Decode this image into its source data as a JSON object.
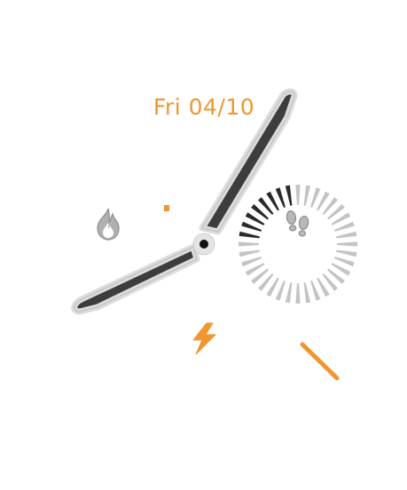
{
  "watch_face": {
    "date": "Fri 04/10",
    "time": {
      "hour": 7,
      "minute": 7
    },
    "steps_progress": {
      "total_segments": 36,
      "dark_segments": 8
    },
    "complications": {
      "calories_icon": "flame-icon",
      "steps_icon": "footprints-icon",
      "battery_icon": "lightning-bolt-icon"
    },
    "colors": {
      "accent": "#f0962e",
      "hand_fill": "#3d3d3d",
      "hand_border": "#d9d9d9",
      "segment_dark": "#2a2a2a",
      "segment_light": "#c4c4c4",
      "icon_gray": "#a8a8a8"
    }
  }
}
